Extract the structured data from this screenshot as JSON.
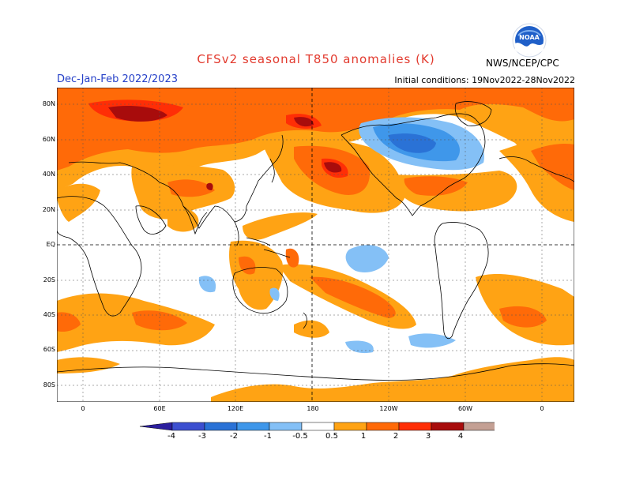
{
  "header": {
    "title": "CFSv2 seasonal T850 anomalies (K)",
    "season": "Dec-Jan-Feb 2022/2023",
    "initial_conditions": "Initial conditions: 19Nov2022-28Nov2022",
    "agency": "NWS/NCEP/CPC",
    "logo_text": "NOAA"
  },
  "map": {
    "lat_labels": [
      "80N",
      "60N",
      "40N",
      "20N",
      "EQ",
      "20S",
      "40S",
      "60S",
      "80S"
    ],
    "lon_labels": [
      "0",
      "60E",
      "120E",
      "180",
      "120W",
      "60W",
      "0"
    ]
  },
  "colorbar": {
    "labels": [
      "-4",
      "-3",
      "-2",
      "-1",
      "-0.5",
      "0.5",
      "1",
      "2",
      "3",
      "4"
    ],
    "colors": [
      "#2c1f9e",
      "#3c4fd0",
      "#2a72d6",
      "#3f97ea",
      "#84c0f6",
      "#ffffff",
      "#ffa314",
      "#ff6a08",
      "#ff2e06",
      "#a80c0c",
      "#c4a094",
      "#8a5a4c"
    ]
  }
}
